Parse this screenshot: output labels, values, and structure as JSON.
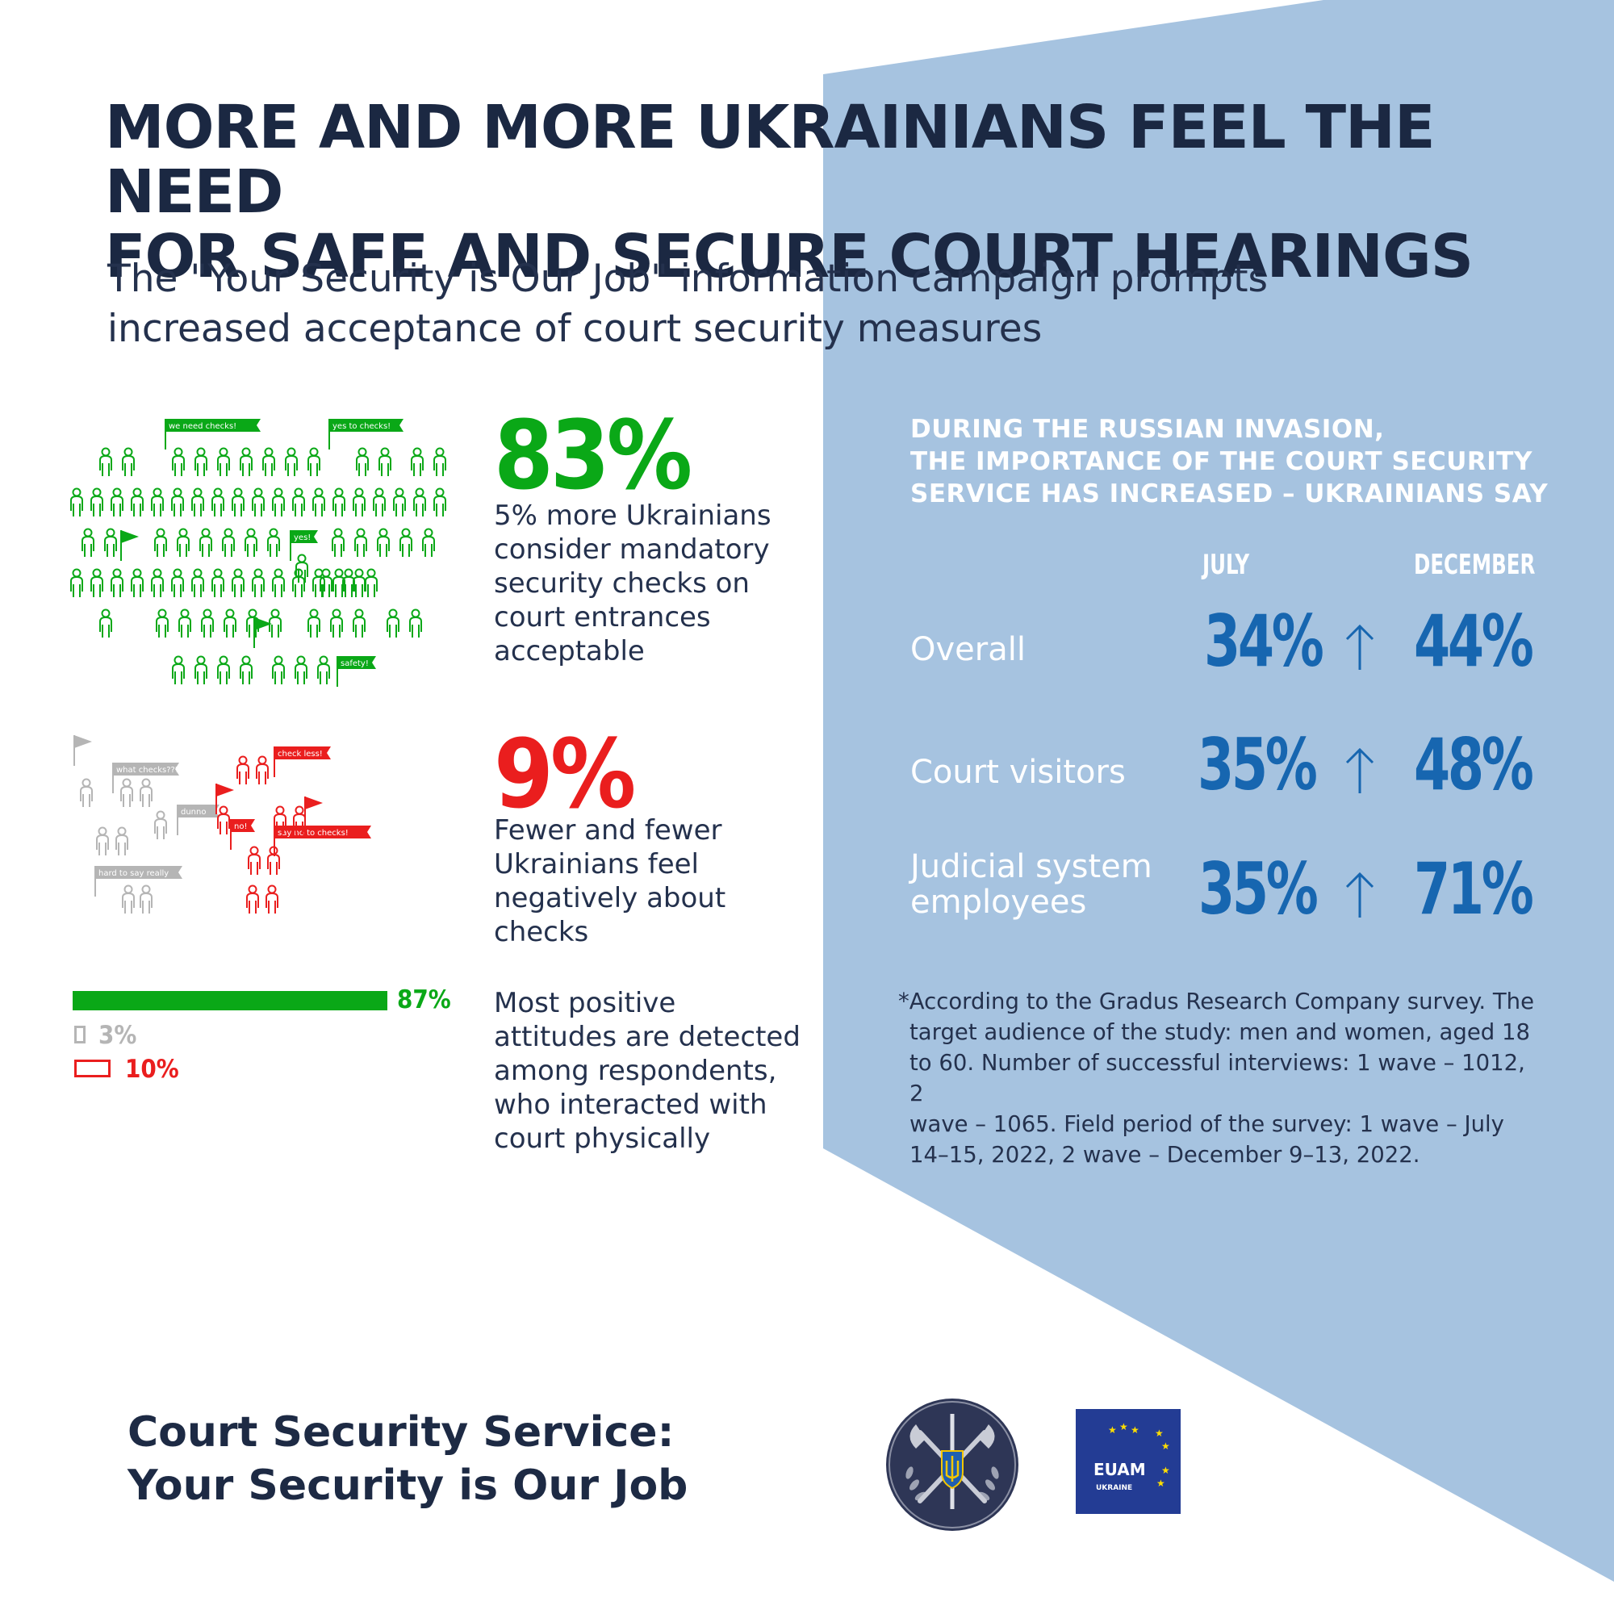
{
  "header": {
    "title_line1": "MORE AND MORE UKRAINIANS FEEL THE NEED",
    "title_line2": "FOR SAFE AND SECURE COURT HEARINGS",
    "subtitle_line1": "The \"Your Security is Our Job\" information campaign prompts",
    "subtitle_line2": "increased acceptance of court security measures"
  },
  "left": {
    "stat1": {
      "value": "83%",
      "lines": [
        "5% more Ukrainians",
        "consider mandatory",
        "security checks on",
        "court entrances",
        "acceptable"
      ],
      "flags": [
        "we need checks!",
        "yes to checks!",
        "yes!",
        "safety!"
      ]
    },
    "stat2": {
      "value": "9%",
      "lines": [
        "Fewer and fewer",
        "Ukrainians feel",
        "negatively about",
        "checks"
      ],
      "grey_flags": [
        "what checks???",
        "dunno",
        "hard to say really"
      ],
      "red_flags": [
        "check less!",
        "no!",
        "say no to checks!"
      ]
    },
    "stat3": {
      "lines": [
        "Most positive",
        "attitudes are detected",
        "among respondents,",
        "who interacted with",
        "court physically"
      ],
      "bars": [
        {
          "label": "87%",
          "value": 87,
          "color": "#0aa817"
        },
        {
          "label": "3%",
          "value": 3,
          "color": "#b5b5b5"
        },
        {
          "label": "10%",
          "value": 10,
          "color": "#ea1e1e"
        }
      ]
    }
  },
  "right": {
    "heading_lines": [
      "DURING THE RUSSIAN INVASION,",
      "THE IMPORTANCE OF THE COURT SECURITY",
      "SERVICE HAS INCREASED – UKRAINIANS SAY"
    ],
    "col_july": "JULY",
    "col_december": "DECEMBER",
    "rows": [
      {
        "label_lines": [
          "Overall"
        ],
        "july": "34%",
        "december": "44%"
      },
      {
        "label_lines": [
          "Court visitors"
        ],
        "july": "35%",
        "december": "48%"
      },
      {
        "label_lines": [
          "Judicial system",
          "employees"
        ],
        "july": "35%",
        "december": "71%"
      }
    ],
    "footnote_lines": [
      "*According to the Gradus Research Company survey. The",
      "target audience of the study: men and women, aged 18",
      "to 60. Number of successful interviews: 1 wave – 1012, 2",
      "wave – 1065. Field period of the survey: 1 wave – July",
      "14–15, 2022, 2 wave – December 9–13, 2022."
    ]
  },
  "footer": {
    "line1": "Court Security Service:",
    "line2": "Your Security is Our Job",
    "euam_text": "EUAM",
    "euam_sub": "UKRAINE"
  },
  "colors": {
    "navy": "#1d2a44",
    "blue_panel": "#a6c3e0",
    "blue_pct": "#1766b0",
    "green": "#0aa817",
    "red": "#ea1e1e",
    "grey": "#b5b5b5",
    "euam_blue": "#233c94",
    "eu_yellow": "#ffde00"
  }
}
